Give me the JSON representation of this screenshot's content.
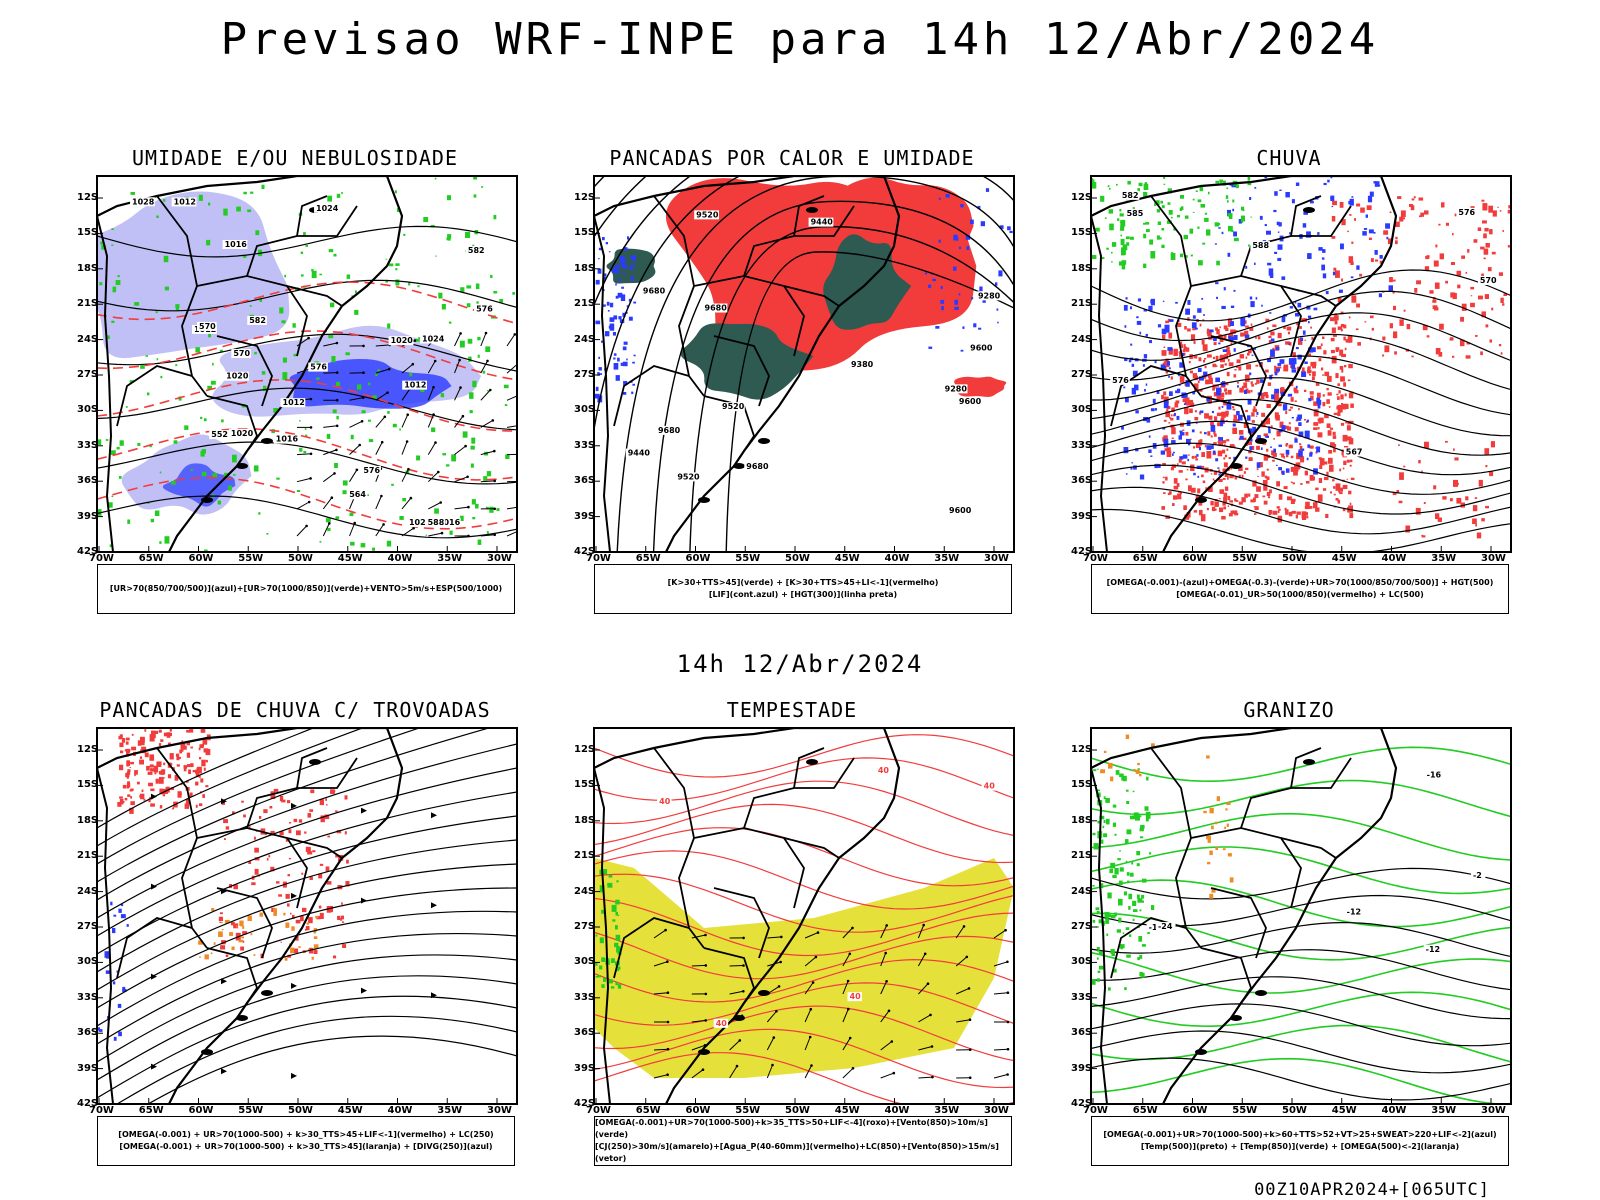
{
  "header": {
    "title": "Previsao WRF-INPE  para 14h 12/Abr/2024",
    "subtitle": "14h 12/Abr/2024",
    "footer": "00Z10APR2024+[065UTC]"
  },
  "axes": {
    "lat_labels": [
      "12S",
      "15S",
      "18S",
      "21S",
      "24S",
      "27S",
      "30S",
      "33S",
      "36S",
      "39S",
      "42S"
    ],
    "lon_labels": [
      "70W",
      "65W",
      "60W",
      "55W",
      "50W",
      "45W",
      "40W",
      "35W",
      "30W"
    ]
  },
  "colors": {
    "blue": "#2a3bff",
    "lavender": "#b9b9f5",
    "green": "#22cc22",
    "red": "#f23c3c",
    "dark_teal": "#2e5a52",
    "yellow": "#e6e03a",
    "orange": "#f08a24"
  },
  "panels": [
    {
      "title": "UMIDADE E/OU NEBULOSIDADE",
      "legend": [
        "[UR>70(850/700/500)](azul)+[UR>70(1000/850)](verde)+VENTO>5m/s+ESP(500/1000)"
      ],
      "contour_labels": [
        "1012",
        "1012",
        "1012",
        "1012",
        "1016",
        "1016",
        "1016",
        "1020",
        "1020",
        "1020",
        "1024",
        "1024",
        "1028",
        "1028",
        "570",
        "576",
        "576",
        "576",
        "582",
        "582",
        "588",
        "570",
        "564",
        "552"
      ]
    },
    {
      "title": "PANCADAS POR CALOR E UMIDADE",
      "legend": [
        "[K>30+TTS>45](verde) + [K>30+TTS>45+LI<-1](vermelho)",
        "[LIF](cont.azul) + [HGT(300)](linha preta)"
      ],
      "contour_labels": [
        "9680",
        "9680",
        "9680",
        "9680",
        "9600",
        "9600",
        "9600",
        "9520",
        "9520",
        "9520",
        "9440",
        "9440",
        "9380",
        "9280",
        "9280"
      ]
    },
    {
      "title": "CHUVA",
      "legend": [
        "[OMEGA(-0.001)-(azul)+OMEGA(-0.3)-(verde)+UR>70(1000/850/700/500)] + HGT(500)",
        "[OMEGA(-0.01)_UR>50(1000/850)(vermelho) + LC(500)"
      ],
      "contour_labels": [
        "585",
        "582",
        "576",
        "576",
        "570",
        "567",
        "588"
      ]
    },
    {
      "title": "PANCADAS DE CHUVA C/ TROVOADAS",
      "legend": [
        "[OMEGA(-0.001) + UR>70(1000-500) + k>30_TTS>45+LIF<-1](vermelho) + LC(250)",
        "[OMEGA(-0.001) + UR>70(1000-500) + k>30_TTS>45](laranja) + [DIVG(250)](azul)"
      ],
      "contour_labels": []
    },
    {
      "title": "TEMPESTADE",
      "legend": [
        "[OMEGA(-0.001)+UR>70(1000-500)+k>35_TTS>50+LIF<-4](roxo)+[Vento(850)>10m/s](verde)",
        "[CJ(250)>30m/s](amarelo)+[Agua_P(40-60mm)](vermelho)+LC(850)+[Vento(850)>15m/s](vetor)"
      ],
      "contour_labels": [
        "40",
        "40",
        "40",
        "40",
        "40"
      ]
    },
    {
      "title": "GRANIZO",
      "legend": [
        "[OMEGA(-0.001)+UR>70(1000-500)+k>60+TTS>52+VT>25+SWEAT>220+LIF<-2](azul)",
        "[Temp(500)](preto) + [Temp(850)](verde) + [OMEGA(500)<-2](laranja)"
      ],
      "contour_labels": [
        "-12",
        "-12",
        "-16",
        "-16",
        "-24",
        "-2"
      ]
    }
  ]
}
